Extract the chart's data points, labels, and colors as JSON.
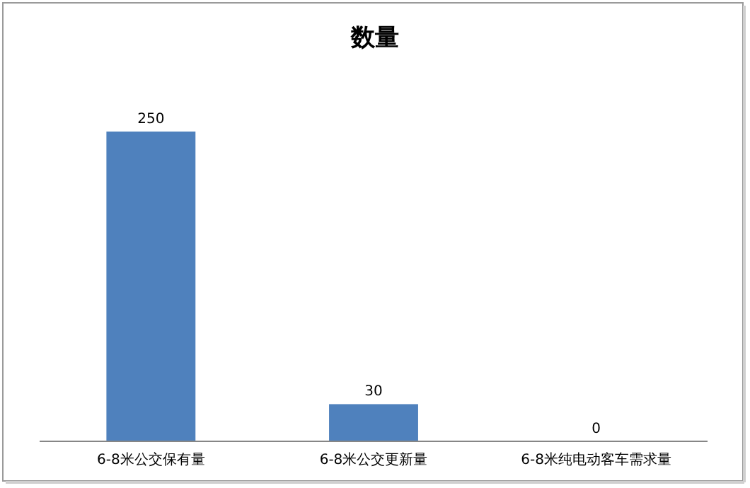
{
  "chart_data": {
    "type": "bar",
    "title": "数量",
    "categories": [
      "6-8米公交保有量",
      "6-8米公交更新量",
      "6-8米纯电动客车需求量"
    ],
    "values": [
      250,
      30,
      0
    ],
    "color": "#4f81bd",
    "data_labels": true
  }
}
